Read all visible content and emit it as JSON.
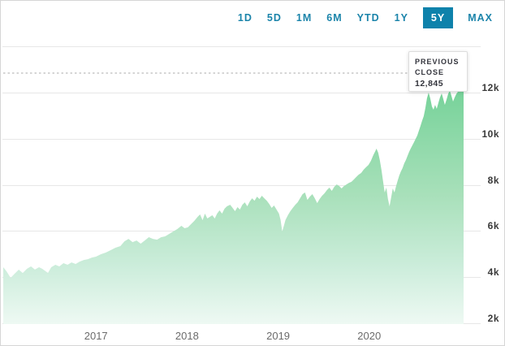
{
  "page": {
    "background": "#ffffff",
    "border_color": "#d6d6d6"
  },
  "range_tabs": {
    "items": [
      {
        "label": "1D",
        "selected": false
      },
      {
        "label": "5D",
        "selected": false
      },
      {
        "label": "1M",
        "selected": false
      },
      {
        "label": "6M",
        "selected": false
      },
      {
        "label": "YTD",
        "selected": false
      },
      {
        "label": "1Y",
        "selected": false
      },
      {
        "label": "5Y",
        "selected": true
      },
      {
        "label": "MAX",
        "selected": false
      }
    ],
    "text_color": "#1b84aa",
    "selected_bg": "#0e82ab",
    "selected_text": "#ffffff"
  },
  "tooltip": {
    "title": "PREVIOUS CLOSE",
    "value": "12,845"
  },
  "chart_data": {
    "type": "area",
    "title": "",
    "xlabel": "",
    "ylabel": "",
    "xlim": [
      2015.982,
      2021.036
    ],
    "ylim": [
      1966,
      14395
    ],
    "grid": true,
    "legend": "none",
    "previous_close": 12845,
    "x_ticks": [
      {
        "value": 2017,
        "label": "2017"
      },
      {
        "value": 2018,
        "label": "2018"
      },
      {
        "value": 2019,
        "label": "2019"
      },
      {
        "value": 2020,
        "label": "2020"
      }
    ],
    "y_ticks": [
      {
        "value": 14000,
        "label": ""
      },
      {
        "value": 12000,
        "label": "12k"
      },
      {
        "value": 10000,
        "label": "10k"
      },
      {
        "value": 8000,
        "label": "8k"
      },
      {
        "value": 6000,
        "label": "6k"
      },
      {
        "value": 4000,
        "label": "4k"
      },
      {
        "value": 2000,
        "label": "2k"
      }
    ],
    "grid_color": "#e7e7e7",
    "dotted_line_color": "#bcbcbc",
    "y_label_color": "#3a3a3a",
    "x_label_color": "#6b6b6b",
    "area_gradient": [
      {
        "offset": 0.0,
        "color": "#5ecb89"
      },
      {
        "offset": 0.2,
        "color": "#79d39b"
      },
      {
        "offset": 0.55,
        "color": "#a8e0ba"
      },
      {
        "offset": 0.8,
        "color": "#cceddb"
      },
      {
        "offset": 1.0,
        "color": "#eef9f3"
      }
    ],
    "series": [
      {
        "name": "index-price",
        "points": [
          [
            2015.982,
            4430
          ],
          [
            2016.018,
            4255
          ],
          [
            2016.063,
            3970
          ],
          [
            2016.107,
            4150
          ],
          [
            2016.152,
            4325
          ],
          [
            2016.196,
            4180
          ],
          [
            2016.241,
            4360
          ],
          [
            2016.286,
            4465
          ],
          [
            2016.33,
            4330
          ],
          [
            2016.375,
            4430
          ],
          [
            2016.411,
            4360
          ],
          [
            2016.473,
            4185
          ],
          [
            2016.509,
            4430
          ],
          [
            2016.554,
            4535
          ],
          [
            2016.598,
            4465
          ],
          [
            2016.643,
            4605
          ],
          [
            2016.688,
            4535
          ],
          [
            2016.732,
            4640
          ],
          [
            2016.777,
            4570
          ],
          [
            2016.821,
            4675
          ],
          [
            2016.866,
            4745
          ],
          [
            2016.911,
            4780
          ],
          [
            2016.955,
            4850
          ],
          [
            2017.0,
            4890
          ],
          [
            2017.054,
            4995
          ],
          [
            2017.107,
            5065
          ],
          [
            2017.161,
            5170
          ],
          [
            2017.214,
            5275
          ],
          [
            2017.268,
            5345
          ],
          [
            2017.313,
            5555
          ],
          [
            2017.357,
            5660
          ],
          [
            2017.402,
            5520
          ],
          [
            2017.446,
            5590
          ],
          [
            2017.491,
            5450
          ],
          [
            2017.536,
            5590
          ],
          [
            2017.58,
            5735
          ],
          [
            2017.625,
            5660
          ],
          [
            2017.67,
            5625
          ],
          [
            2017.714,
            5730
          ],
          [
            2017.759,
            5770
          ],
          [
            2017.804,
            5875
          ],
          [
            2017.848,
            5980
          ],
          [
            2017.893,
            6085
          ],
          [
            2017.938,
            6225
          ],
          [
            2017.973,
            6120
          ],
          [
            2018.009,
            6160
          ],
          [
            2018.045,
            6300
          ],
          [
            2018.08,
            6440
          ],
          [
            2018.116,
            6615
          ],
          [
            2018.143,
            6720
          ],
          [
            2018.17,
            6470
          ],
          [
            2018.196,
            6755
          ],
          [
            2018.223,
            6545
          ],
          [
            2018.25,
            6615
          ],
          [
            2018.277,
            6685
          ],
          [
            2018.304,
            6545
          ],
          [
            2018.33,
            6755
          ],
          [
            2018.357,
            6895
          ],
          [
            2018.384,
            6755
          ],
          [
            2018.411,
            6965
          ],
          [
            2018.438,
            7070
          ],
          [
            2018.473,
            7140
          ],
          [
            2018.5,
            7000
          ],
          [
            2018.527,
            6860
          ],
          [
            2018.554,
            7035
          ],
          [
            2018.58,
            6930
          ],
          [
            2018.607,
            7140
          ],
          [
            2018.634,
            7245
          ],
          [
            2018.661,
            7070
          ],
          [
            2018.688,
            7280
          ],
          [
            2018.714,
            7420
          ],
          [
            2018.741,
            7315
          ],
          [
            2018.768,
            7490
          ],
          [
            2018.795,
            7385
          ],
          [
            2018.821,
            7530
          ],
          [
            2018.848,
            7420
          ],
          [
            2018.875,
            7315
          ],
          [
            2018.902,
            7175
          ],
          [
            2018.929,
            7000
          ],
          [
            2018.955,
            7105
          ],
          [
            2018.982,
            6930
          ],
          [
            2019.009,
            6755
          ],
          [
            2019.027,
            6475
          ],
          [
            2019.045,
            5980
          ],
          [
            2019.063,
            6230
          ],
          [
            2019.08,
            6475
          ],
          [
            2019.107,
            6685
          ],
          [
            2019.134,
            6860
          ],
          [
            2019.161,
            7000
          ],
          [
            2019.188,
            7140
          ],
          [
            2019.214,
            7245
          ],
          [
            2019.241,
            7420
          ],
          [
            2019.268,
            7600
          ],
          [
            2019.295,
            7670
          ],
          [
            2019.321,
            7350
          ],
          [
            2019.348,
            7490
          ],
          [
            2019.375,
            7600
          ],
          [
            2019.402,
            7420
          ],
          [
            2019.429,
            7210
          ],
          [
            2019.455,
            7385
          ],
          [
            2019.482,
            7530
          ],
          [
            2019.509,
            7635
          ],
          [
            2019.536,
            7775
          ],
          [
            2019.563,
            7880
          ],
          [
            2019.589,
            7740
          ],
          [
            2019.616,
            7915
          ],
          [
            2019.643,
            8020
          ],
          [
            2019.67,
            7950
          ],
          [
            2019.696,
            7845
          ],
          [
            2019.723,
            7950
          ],
          [
            2019.75,
            8020
          ],
          [
            2019.777,
            8090
          ],
          [
            2019.804,
            8130
          ],
          [
            2019.83,
            8230
          ],
          [
            2019.857,
            8340
          ],
          [
            2019.884,
            8445
          ],
          [
            2019.911,
            8515
          ],
          [
            2019.938,
            8655
          ],
          [
            2019.964,
            8760
          ],
          [
            2019.991,
            8865
          ],
          [
            2020.018,
            9040
          ],
          [
            2020.045,
            9290
          ],
          [
            2020.063,
            9430
          ],
          [
            2020.08,
            9570
          ],
          [
            2020.098,
            9395
          ],
          [
            2020.116,
            9075
          ],
          [
            2020.134,
            8655
          ],
          [
            2020.152,
            8160
          ],
          [
            2020.17,
            7670
          ],
          [
            2020.188,
            7880
          ],
          [
            2020.205,
            7390
          ],
          [
            2020.223,
            7070
          ],
          [
            2020.241,
            7460
          ],
          [
            2020.259,
            7845
          ],
          [
            2020.277,
            7670
          ],
          [
            2020.295,
            7950
          ],
          [
            2020.313,
            8195
          ],
          [
            2020.33,
            8410
          ],
          [
            2020.348,
            8585
          ],
          [
            2020.366,
            8725
          ],
          [
            2020.384,
            8935
          ],
          [
            2020.402,
            9075
          ],
          [
            2020.42,
            9255
          ],
          [
            2020.438,
            9430
          ],
          [
            2020.455,
            9570
          ],
          [
            2020.473,
            9710
          ],
          [
            2020.491,
            9850
          ],
          [
            2020.509,
            9995
          ],
          [
            2020.527,
            10135
          ],
          [
            2020.545,
            10345
          ],
          [
            2020.563,
            10555
          ],
          [
            2020.58,
            10770
          ],
          [
            2020.598,
            10980
          ],
          [
            2020.616,
            11330
          ],
          [
            2020.634,
            11755
          ],
          [
            2020.652,
            12000
          ],
          [
            2020.67,
            11755
          ],
          [
            2020.688,
            11400
          ],
          [
            2020.705,
            11260
          ],
          [
            2020.723,
            11470
          ],
          [
            2020.741,
            11295
          ],
          [
            2020.759,
            11545
          ],
          [
            2020.777,
            11790
          ],
          [
            2020.795,
            11965
          ],
          [
            2020.813,
            11720
          ],
          [
            2020.83,
            11470
          ],
          [
            2020.848,
            11685
          ],
          [
            2020.866,
            11930
          ],
          [
            2020.884,
            12105
          ],
          [
            2020.902,
            11860
          ],
          [
            2020.92,
            11615
          ],
          [
            2020.938,
            11790
          ],
          [
            2020.955,
            11930
          ],
          [
            2020.973,
            12035
          ],
          [
            2021.0,
            12105
          ],
          [
            2021.036,
            12140
          ]
        ]
      }
    ]
  }
}
